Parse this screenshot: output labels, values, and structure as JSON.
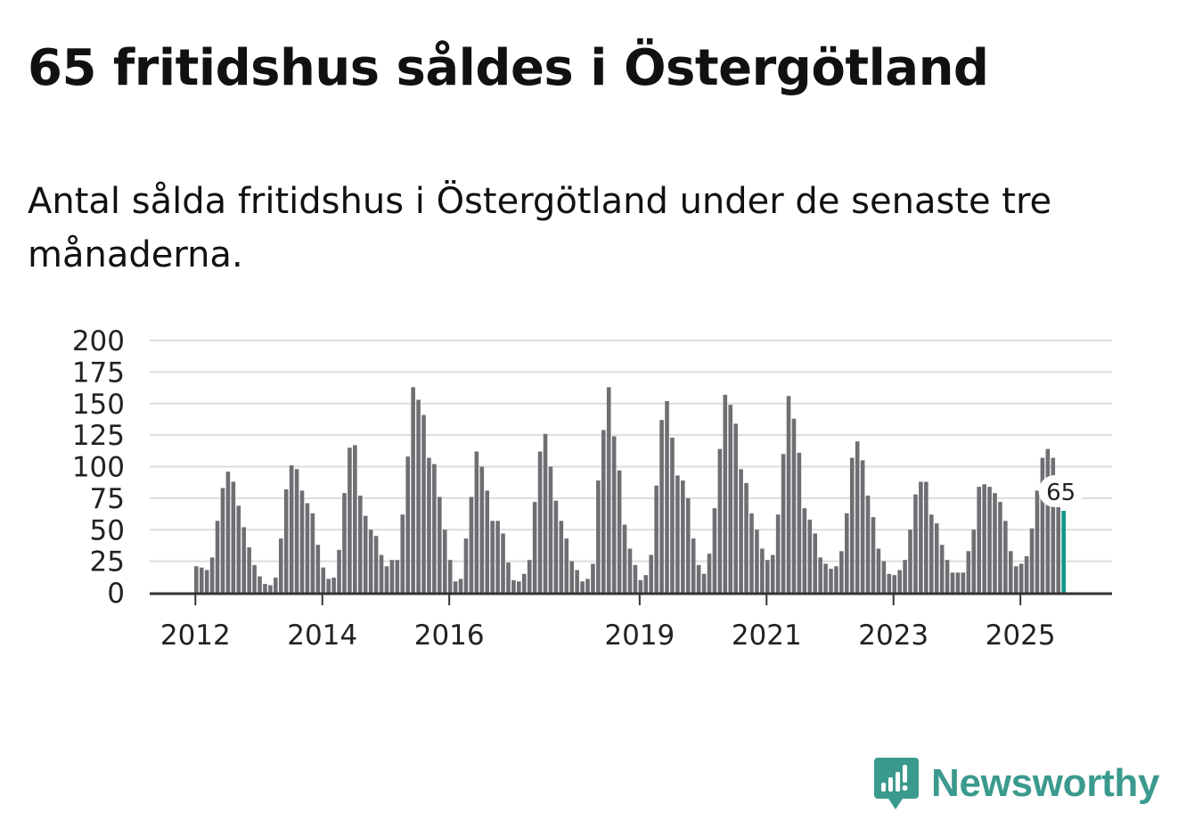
{
  "title": "65 fritidshus såldes i Östergötland",
  "subtitle": "Antal sålda fritidshus i Östergötland under de senaste tre månaderna.",
  "brand": {
    "name": "Newsworthy",
    "color": "#3a9a8d",
    "icon": "newsworthy-logo-icon"
  },
  "colors": {
    "bar": "#6e6e73",
    "highlight": "#0f9688",
    "grid": "#dddddd"
  },
  "chart_data": {
    "type": "bar",
    "title": "65 fritidshus såldes i Östergötland",
    "xlabel": "",
    "ylabel": "",
    "ylim": [
      0,
      200
    ],
    "yticks": [
      0,
      25,
      50,
      75,
      100,
      125,
      150,
      175,
      200
    ],
    "grid": true,
    "start": "2012-01",
    "x_tick_labels": [
      {
        "label": "2012",
        "index": 0
      },
      {
        "label": "2014",
        "index": 24
      },
      {
        "label": "2016",
        "index": 48
      },
      {
        "label": "2019",
        "index": 84
      },
      {
        "label": "2021",
        "index": 108
      },
      {
        "label": "2023",
        "index": 132
      },
      {
        "label": "2025",
        "index": 156
      }
    ],
    "highlight": {
      "label": "65",
      "value": 65
    },
    "values": [
      21,
      20,
      18,
      28,
      57,
      83,
      96,
      88,
      69,
      52,
      36,
      22,
      13,
      7,
      6,
      12,
      43,
      82,
      101,
      98,
      81,
      71,
      63,
      38,
      20,
      11,
      12,
      34,
      79,
      115,
      117,
      77,
      61,
      50,
      45,
      30,
      21,
      26,
      26,
      62,
      108,
      163,
      153,
      141,
      107,
      102,
      76,
      50,
      26,
      9,
      11,
      43,
      76,
      112,
      100,
      81,
      57,
      57,
      47,
      24,
      10,
      9,
      15,
      26,
      72,
      112,
      126,
      100,
      73,
      57,
      43,
      25,
      18,
      9,
      11,
      23,
      89,
      129,
      163,
      124,
      97,
      54,
      35,
      22,
      10,
      14,
      30,
      85,
      137,
      152,
      123,
      93,
      89,
      75,
      43,
      22,
      15,
      31,
      67,
      114,
      157,
      149,
      134,
      98,
      87,
      63,
      50,
      35,
      26,
      30,
      62,
      110,
      156,
      138,
      111,
      67,
      58,
      47,
      28,
      23,
      19,
      21,
      33,
      63,
      107,
      120,
      105,
      77,
      60,
      35,
      25,
      15,
      14,
      18,
      26,
      50,
      78,
      88,
      88,
      62,
      55,
      38,
      26,
      16,
      16,
      16,
      33,
      50,
      84,
      86,
      84,
      79,
      72,
      57,
      33,
      21,
      23,
      29,
      51,
      81,
      107,
      114,
      107,
      85,
      65
    ]
  }
}
